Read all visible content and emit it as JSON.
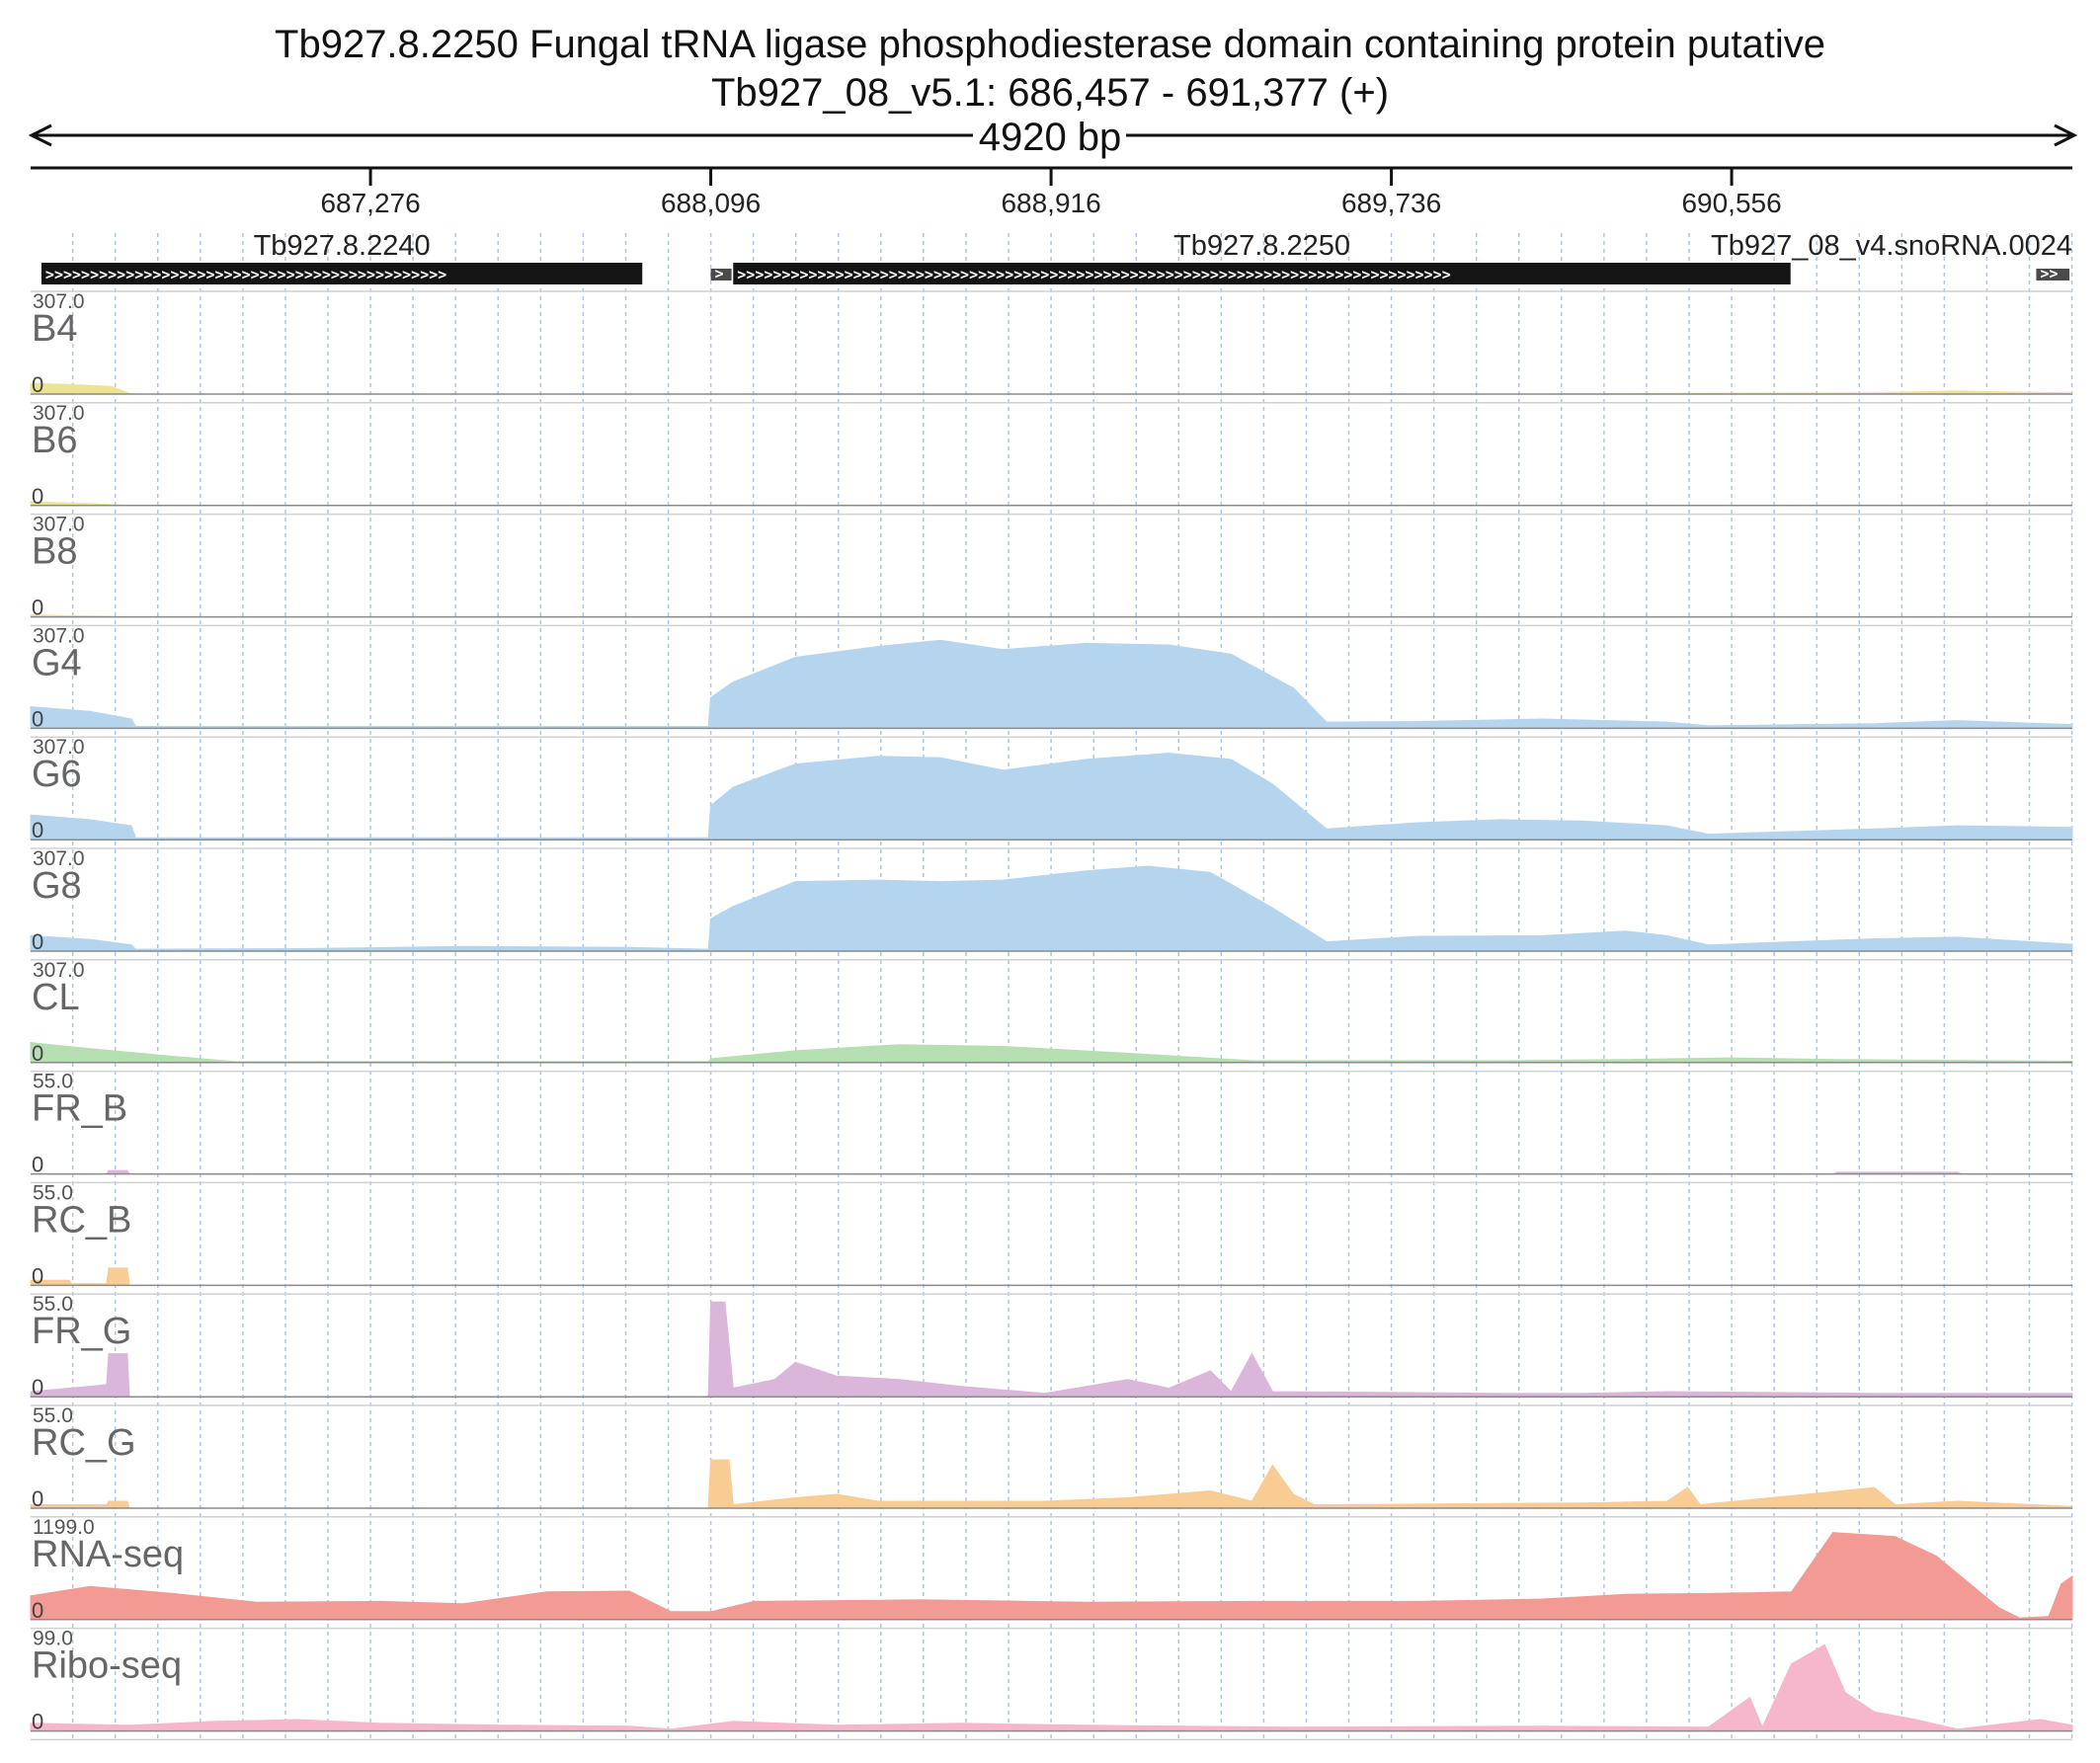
{
  "chart_data": {
    "type": "area",
    "title": "Tb927.8.2250  Fungal tRNA ligase phosphodiesterase domain containing protein  putative",
    "subtitle": "Tb927_08_v5.1: 686,457 - 691,377 (+)",
    "span_label": "4920 bp",
    "x_range": [
      686457,
      691377
    ],
    "x_ticks": [
      {
        "value": 687276,
        "label": "687,276"
      },
      {
        "value": 688096,
        "label": "688,096"
      },
      {
        "value": 688916,
        "label": "688,916"
      },
      {
        "value": 689736,
        "label": "689,736"
      },
      {
        "value": 690556,
        "label": "690,556"
      }
    ],
    "genes": [
      {
        "name": "Tb927.8.2240",
        "start": 686483,
        "end": 687931,
        "strand": "+"
      },
      {
        "name": "",
        "start": 688096,
        "end": 688146,
        "strand": "+"
      },
      {
        "name": "Tb927.8.2250",
        "start": 688150,
        "end": 690698,
        "strand": "+"
      },
      {
        "name": "Tb927_08_v4.snoRNA.0024",
        "start": 691290,
        "end": 691370,
        "strand": "+"
      }
    ],
    "tracks": [
      {
        "name": "B4",
        "max": 307.0,
        "max_label": "307.0",
        "zero_label": "0",
        "color": "#ece395",
        "points": [
          [
            686457,
            35
          ],
          [
            686570,
            30
          ],
          [
            686650,
            25
          ],
          [
            686700,
            0
          ],
          [
            690000,
            0
          ],
          [
            690500,
            3
          ],
          [
            690900,
            4
          ],
          [
            691100,
            10
          ],
          [
            691250,
            6
          ],
          [
            691377,
            4
          ]
        ]
      },
      {
        "name": "B6",
        "max": 307.0,
        "max_label": "307.0",
        "zero_label": "0",
        "color": "#ece395",
        "points": [
          [
            686457,
            12
          ],
          [
            686600,
            6
          ],
          [
            686700,
            0
          ],
          [
            688800,
            2
          ],
          [
            689000,
            2
          ],
          [
            689200,
            0
          ],
          [
            690500,
            1
          ],
          [
            691377,
            2
          ]
        ]
      },
      {
        "name": "B8",
        "max": 307.0,
        "max_label": "307.0",
        "zero_label": "0",
        "color": "#ece395",
        "points": [
          [
            686457,
            6
          ],
          [
            686600,
            3
          ],
          [
            686700,
            0
          ],
          [
            691377,
            0
          ]
        ]
      },
      {
        "name": "G4",
        "max": 307.0,
        "max_label": "307.0",
        "zero_label": "0",
        "color": "#b5d5ef",
        "points": [
          [
            686457,
            70
          ],
          [
            686600,
            55
          ],
          [
            686700,
            30
          ],
          [
            686710,
            6
          ],
          [
            688090,
            6
          ],
          [
            688096,
            100
          ],
          [
            688150,
            150
          ],
          [
            688300,
            230
          ],
          [
            688500,
            265
          ],
          [
            688650,
            285
          ],
          [
            688800,
            255
          ],
          [
            689000,
            275
          ],
          [
            689200,
            270
          ],
          [
            689350,
            240
          ],
          [
            689500,
            130
          ],
          [
            689580,
            20
          ],
          [
            689800,
            22
          ],
          [
            690100,
            30
          ],
          [
            690400,
            20
          ],
          [
            690500,
            8
          ],
          [
            690900,
            15
          ],
          [
            691100,
            25
          ],
          [
            691377,
            12
          ]
        ]
      },
      {
        "name": "G6",
        "max": 307.0,
        "max_label": "307.0",
        "zero_label": "0",
        "color": "#b5d5ef",
        "points": [
          [
            686457,
            80
          ],
          [
            686600,
            65
          ],
          [
            686700,
            45
          ],
          [
            686710,
            6
          ],
          [
            688090,
            6
          ],
          [
            688096,
            110
          ],
          [
            688150,
            170
          ],
          [
            688300,
            245
          ],
          [
            688500,
            270
          ],
          [
            688650,
            265
          ],
          [
            688800,
            225
          ],
          [
            689000,
            260
          ],
          [
            689200,
            280
          ],
          [
            689350,
            260
          ],
          [
            689450,
            180
          ],
          [
            689580,
            35
          ],
          [
            689800,
            55
          ],
          [
            690000,
            65
          ],
          [
            690200,
            60
          ],
          [
            690400,
            45
          ],
          [
            690500,
            18
          ],
          [
            690900,
            35
          ],
          [
            691100,
            45
          ],
          [
            691377,
            40
          ]
        ]
      },
      {
        "name": "G8",
        "max": 307.0,
        "max_label": "307.0",
        "zero_label": "0",
        "color": "#b5d5ef",
        "points": [
          [
            686457,
            50
          ],
          [
            686600,
            38
          ],
          [
            686700,
            20
          ],
          [
            686710,
            6
          ],
          [
            687100,
            8
          ],
          [
            687500,
            15
          ],
          [
            687900,
            12
          ],
          [
            688090,
            6
          ],
          [
            688096,
            105
          ],
          [
            688150,
            145
          ],
          [
            688300,
            225
          ],
          [
            688500,
            230
          ],
          [
            688650,
            225
          ],
          [
            688800,
            230
          ],
          [
            689000,
            260
          ],
          [
            689150,
            275
          ],
          [
            689300,
            255
          ],
          [
            689450,
            140
          ],
          [
            689580,
            30
          ],
          [
            689800,
            48
          ],
          [
            690100,
            50
          ],
          [
            690300,
            65
          ],
          [
            690400,
            50
          ],
          [
            690500,
            20
          ],
          [
            690900,
            40
          ],
          [
            691100,
            45
          ],
          [
            691377,
            22
          ]
        ]
      },
      {
        "name": "CL",
        "max": 307.0,
        "max_label": "307.0",
        "zero_label": "0",
        "color": "#b5deb1",
        "points": [
          [
            686457,
            65
          ],
          [
            686600,
            45
          ],
          [
            686800,
            20
          ],
          [
            686950,
            3
          ],
          [
            688090,
            3
          ],
          [
            688096,
            12
          ],
          [
            688300,
            38
          ],
          [
            688550,
            58
          ],
          [
            688800,
            52
          ],
          [
            689100,
            30
          ],
          [
            689400,
            6
          ],
          [
            690000,
            6
          ],
          [
            690300,
            10
          ],
          [
            690550,
            15
          ],
          [
            690800,
            10
          ],
          [
            691377,
            4
          ]
        ]
      },
      {
        "name": "FR_B",
        "max": 55.0,
        "max_label": "55.0",
        "zero_label": "0",
        "color": "#dbb6db",
        "points": [
          [
            686457,
            0
          ],
          [
            686640,
            0
          ],
          [
            686645,
            2
          ],
          [
            686690,
            2
          ],
          [
            686695,
            0
          ],
          [
            690800,
            0
          ],
          [
            690810,
            1
          ],
          [
            691100,
            1
          ],
          [
            691110,
            0
          ],
          [
            691377,
            0
          ]
        ]
      },
      {
        "name": "RC_B",
        "max": 55.0,
        "max_label": "55.0",
        "zero_label": "0",
        "color": "#f8cc92",
        "points": [
          [
            686457,
            3
          ],
          [
            686550,
            3
          ],
          [
            686555,
            1
          ],
          [
            686640,
            1
          ],
          [
            686645,
            10
          ],
          [
            686690,
            10
          ],
          [
            686695,
            0
          ],
          [
            691377,
            0
          ]
        ]
      },
      {
        "name": "FR_G",
        "max": 55.0,
        "max_label": "55.0",
        "zero_label": "0",
        "color": "#dbb6db",
        "points": [
          [
            686457,
            3
          ],
          [
            686550,
            5
          ],
          [
            686640,
            7
          ],
          [
            686645,
            25
          ],
          [
            686690,
            25
          ],
          [
            686695,
            0
          ],
          [
            688090,
            0
          ],
          [
            688096,
            55
          ],
          [
            688130,
            55
          ],
          [
            688150,
            5
          ],
          [
            688250,
            10
          ],
          [
            688300,
            20
          ],
          [
            688400,
            12
          ],
          [
            688550,
            10
          ],
          [
            688700,
            6
          ],
          [
            688900,
            2
          ],
          [
            689100,
            10
          ],
          [
            689200,
            5
          ],
          [
            689300,
            15
          ],
          [
            689350,
            3
          ],
          [
            689400,
            25
          ],
          [
            689450,
            3
          ],
          [
            690000,
            2
          ],
          [
            690200,
            2
          ],
          [
            690400,
            3
          ],
          [
            690900,
            2
          ],
          [
            691377,
            2
          ]
        ]
      },
      {
        "name": "RC_G",
        "max": 55.0,
        "max_label": "55.0",
        "zero_label": "0",
        "color": "#f8cc92",
        "points": [
          [
            686457,
            2
          ],
          [
            686640,
            2
          ],
          [
            686645,
            4
          ],
          [
            686690,
            4
          ],
          [
            686695,
            0
          ],
          [
            688090,
            0
          ],
          [
            688096,
            28
          ],
          [
            688140,
            28
          ],
          [
            688150,
            2
          ],
          [
            688300,
            6
          ],
          [
            688400,
            8
          ],
          [
            688500,
            4
          ],
          [
            688900,
            4
          ],
          [
            689100,
            6
          ],
          [
            689300,
            10
          ],
          [
            689400,
            4
          ],
          [
            689450,
            25
          ],
          [
            689500,
            8
          ],
          [
            689550,
            2
          ],
          [
            690200,
            3
          ],
          [
            690400,
            4
          ],
          [
            690450,
            12
          ],
          [
            690480,
            2
          ],
          [
            690900,
            12
          ],
          [
            690950,
            2
          ],
          [
            691100,
            4
          ],
          [
            691377,
            1
          ]
        ]
      },
      {
        "name": "RNA-seq",
        "max": 1199.0,
        "max_label": "1199.0",
        "zero_label": "0",
        "color": "#f39a94",
        "points": [
          [
            686457,
            300
          ],
          [
            686600,
            420
          ],
          [
            686800,
            330
          ],
          [
            687000,
            220
          ],
          [
            687300,
            230
          ],
          [
            687500,
            200
          ],
          [
            687700,
            350
          ],
          [
            687900,
            360
          ],
          [
            688000,
            100
          ],
          [
            688096,
            100
          ],
          [
            688200,
            230
          ],
          [
            688600,
            250
          ],
          [
            689000,
            220
          ],
          [
            689400,
            230
          ],
          [
            689800,
            230
          ],
          [
            690100,
            260
          ],
          [
            690300,
            320
          ],
          [
            690500,
            330
          ],
          [
            690700,
            350
          ],
          [
            690800,
            1100
          ],
          [
            690950,
            1050
          ],
          [
            691050,
            800
          ],
          [
            691200,
            150
          ],
          [
            691250,
            20
          ],
          [
            691320,
            40
          ],
          [
            691350,
            450
          ],
          [
            691377,
            550
          ]
        ]
      },
      {
        "name": "Ribo-seq",
        "max": 99.0,
        "max_label": "99.0",
        "zero_label": "0",
        "color": "#f6b6cb",
        "points": [
          [
            686457,
            8
          ],
          [
            686700,
            6
          ],
          [
            686900,
            10
          ],
          [
            687100,
            12
          ],
          [
            687300,
            8
          ],
          [
            687600,
            6
          ],
          [
            687900,
            5
          ],
          [
            688000,
            2
          ],
          [
            688150,
            10
          ],
          [
            688400,
            6
          ],
          [
            688700,
            8
          ],
          [
            689000,
            6
          ],
          [
            689500,
            4
          ],
          [
            690100,
            5
          ],
          [
            690500,
            4
          ],
          [
            690600,
            35
          ],
          [
            690630,
            4
          ],
          [
            690700,
            70
          ],
          [
            690780,
            90
          ],
          [
            690830,
            40
          ],
          [
            690900,
            20
          ],
          [
            691000,
            12
          ],
          [
            691100,
            2
          ],
          [
            691300,
            12
          ],
          [
            691377,
            6
          ]
        ]
      }
    ]
  }
}
